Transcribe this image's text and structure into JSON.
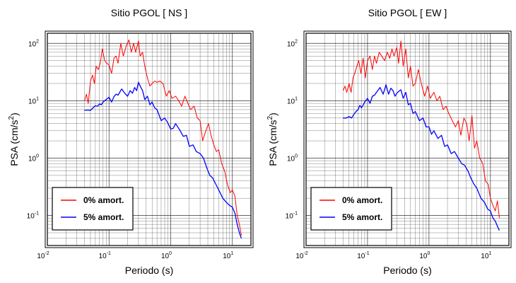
{
  "chart_data": [
    {
      "type": "line",
      "title": "Sitio PGOL [ NS ]",
      "xlabel": "Periodo (s)",
      "ylabel": "PSA (cm/s²)",
      "xscale": "log",
      "yscale": "log",
      "xlim": [
        0.01,
        20
      ],
      "ylim": [
        0.03,
        150
      ],
      "grid": true,
      "legend_position": "bottom-left",
      "xticks": [
        {
          "base": "10",
          "exp": "-2"
        },
        {
          "base": "10",
          "exp": "-1"
        },
        {
          "base": "10",
          "exp": "0"
        },
        {
          "base": "10",
          "exp": "1"
        }
      ],
      "yticks": [
        {
          "base": "10",
          "exp": "-1"
        },
        {
          "base": "10",
          "exp": "0"
        },
        {
          "base": "10",
          "exp": "1"
        },
        {
          "base": "10",
          "exp": "2"
        }
      ],
      "series": [
        {
          "name": "0% amort.",
          "color": "#ff0000",
          "x": [
            0.04,
            0.043,
            0.046,
            0.05,
            0.054,
            0.058,
            0.062,
            0.067,
            0.072,
            0.078,
            0.085,
            0.092,
            0.1,
            0.11,
            0.12,
            0.13,
            0.14,
            0.155,
            0.17,
            0.19,
            0.21,
            0.23,
            0.25,
            0.27,
            0.3,
            0.32,
            0.35,
            0.38,
            0.42,
            0.46,
            0.5,
            0.55,
            0.6,
            0.67,
            0.75,
            0.85,
            0.95,
            1.05,
            1.2,
            1.35,
            1.5,
            1.7,
            1.9,
            2.1,
            2.4,
            2.7,
            3.0,
            3.3,
            3.7,
            4.1,
            4.5,
            5.0,
            5.5,
            6.0,
            6.7,
            7.5,
            8.3,
            9.2,
            10.0,
            11.0,
            12.0,
            13.0,
            14.0
          ],
          "y": [
            10,
            13,
            9,
            22,
            28,
            20,
            40,
            35,
            45,
            80,
            50,
            45,
            42,
            30,
            55,
            60,
            45,
            100,
            60,
            90,
            115,
            70,
            100,
            70,
            110,
            60,
            70,
            40,
            25,
            18,
            20,
            22,
            21,
            22,
            20,
            12,
            15,
            11,
            12,
            10,
            8,
            12,
            9,
            7,
            8,
            5,
            4.5,
            2,
            3,
            4,
            2.5,
            1.7,
            1.3,
            1.4,
            0.8,
            0.6,
            0.35,
            0.25,
            0.28,
            0.22,
            0.1,
            0.07,
            0.045
          ]
        },
        {
          "name": "5% amort.",
          "color": "#0000ff",
          "x": [
            0.04,
            0.045,
            0.05,
            0.055,
            0.06,
            0.065,
            0.07,
            0.075,
            0.08,
            0.09,
            0.1,
            0.11,
            0.12,
            0.13,
            0.14,
            0.16,
            0.18,
            0.2,
            0.22,
            0.24,
            0.26,
            0.28,
            0.3,
            0.32,
            0.35,
            0.38,
            0.42,
            0.46,
            0.5,
            0.55,
            0.6,
            0.7,
            0.8,
            0.9,
            1.0,
            1.1,
            1.2,
            1.4,
            1.6,
            1.8,
            2.0,
            2.3,
            2.6,
            3.0,
            3.4,
            3.8,
            4.3,
            4.8,
            5.4,
            6.0,
            7.0,
            8.0,
            9.0,
            10.0,
            11.0,
            12.0,
            13.0,
            14.0
          ],
          "y": [
            6.8,
            6.9,
            6.8,
            7.5,
            8.2,
            8,
            8.8,
            8.5,
            9.5,
            10.5,
            11.5,
            9.5,
            11.8,
            13,
            12.5,
            16,
            13.5,
            12,
            15,
            13.5,
            17,
            15,
            21,
            18,
            15,
            10.5,
            12,
            8.5,
            9.5,
            7.5,
            7,
            4.5,
            5,
            4.1,
            3.2,
            3.3,
            4,
            3.1,
            2.4,
            2.5,
            1.6,
            1.7,
            1.3,
            1.2,
            1,
            0.7,
            0.5,
            0.45,
            0.35,
            0.28,
            0.2,
            0.17,
            0.15,
            0.14,
            0.11,
            0.07,
            0.05,
            0.04
          ]
        }
      ]
    },
    {
      "type": "line",
      "title": "Sitio PGOL [ EW ]",
      "xlabel": "Periodo (s)",
      "ylabel": "PSA (cm/s²)",
      "xscale": "log",
      "yscale": "log",
      "xlim": [
        0.01,
        20
      ],
      "ylim": [
        0.03,
        150
      ],
      "grid": true,
      "legend_position": "bottom-left",
      "xticks": [
        {
          "base": "10",
          "exp": "-2"
        },
        {
          "base": "10",
          "exp": "-1"
        },
        {
          "base": "10",
          "exp": "0"
        },
        {
          "base": "10",
          "exp": "1"
        }
      ],
      "yticks": [
        {
          "base": "10",
          "exp": "-1"
        },
        {
          "base": "10",
          "exp": "0"
        },
        {
          "base": "10",
          "exp": "1"
        },
        {
          "base": "10",
          "exp": "2"
        }
      ],
      "series": [
        {
          "name": "0% amort.",
          "color": "#ff0000",
          "x": [
            0.04,
            0.043,
            0.046,
            0.05,
            0.054,
            0.058,
            0.062,
            0.067,
            0.072,
            0.078,
            0.085,
            0.092,
            0.1,
            0.11,
            0.12,
            0.13,
            0.14,
            0.155,
            0.17,
            0.19,
            0.21,
            0.23,
            0.25,
            0.27,
            0.3,
            0.32,
            0.35,
            0.38,
            0.42,
            0.46,
            0.5,
            0.55,
            0.6,
            0.67,
            0.75,
            0.85,
            0.95,
            1.05,
            1.2,
            1.35,
            1.5,
            1.7,
            1.9,
            2.1,
            2.4,
            2.7,
            3.0,
            3.3,
            3.7,
            4.1,
            4.5,
            5.0,
            5.5,
            6.0,
            6.7,
            7.5,
            8.3,
            9.2,
            10.0,
            11.0,
            12.0,
            13.0,
            14.0
          ],
          "y": [
            15,
            18,
            14,
            20,
            14,
            25,
            30,
            40,
            50,
            30,
            55,
            25,
            50,
            60,
            35,
            60,
            45,
            70,
            60,
            50,
            70,
            55,
            80,
            60,
            85,
            45,
            110,
            40,
            80,
            25,
            40,
            18,
            20,
            35,
            20,
            12,
            18,
            11,
            14,
            10,
            12,
            7,
            8,
            6,
            4.5,
            3.5,
            4.5,
            2.5,
            5,
            4,
            2,
            5.5,
            1.5,
            2,
            1,
            0.8,
            0.4,
            0.35,
            0.2,
            0.15,
            0.12,
            0.18,
            0.09
          ]
        },
        {
          "name": "5% amort.",
          "color": "#0000ff",
          "x": [
            0.04,
            0.045,
            0.05,
            0.055,
            0.06,
            0.065,
            0.07,
            0.075,
            0.08,
            0.09,
            0.1,
            0.11,
            0.12,
            0.13,
            0.14,
            0.16,
            0.18,
            0.2,
            0.22,
            0.24,
            0.26,
            0.28,
            0.3,
            0.32,
            0.35,
            0.38,
            0.42,
            0.46,
            0.5,
            0.55,
            0.6,
            0.7,
            0.8,
            0.9,
            1.0,
            1.1,
            1.2,
            1.4,
            1.6,
            1.8,
            2.0,
            2.3,
            2.6,
            3.0,
            3.4,
            3.8,
            4.3,
            4.8,
            5.4,
            6.0,
            7.0,
            8.0,
            9.0,
            10.0,
            11.0,
            12.0,
            13.0,
            14.0
          ],
          "y": [
            5,
            5,
            5.3,
            5,
            5.8,
            6.5,
            7,
            8.3,
            7.5,
            9.5,
            11,
            9,
            12,
            12.5,
            14,
            17,
            13,
            19,
            13,
            16.5,
            15,
            12,
            13.5,
            14.5,
            15.5,
            11,
            14,
            8.5,
            9,
            6,
            6.5,
            4.5,
            5,
            3.5,
            3.5,
            2.6,
            3,
            2.2,
            2.5,
            1.6,
            1.7,
            1.2,
            1.3,
            1,
            0.8,
            0.75,
            0.6,
            0.45,
            0.35,
            0.3,
            0.2,
            0.17,
            0.13,
            0.12,
            0.09,
            0.08,
            0.065,
            0.055
          ]
        }
      ]
    }
  ]
}
